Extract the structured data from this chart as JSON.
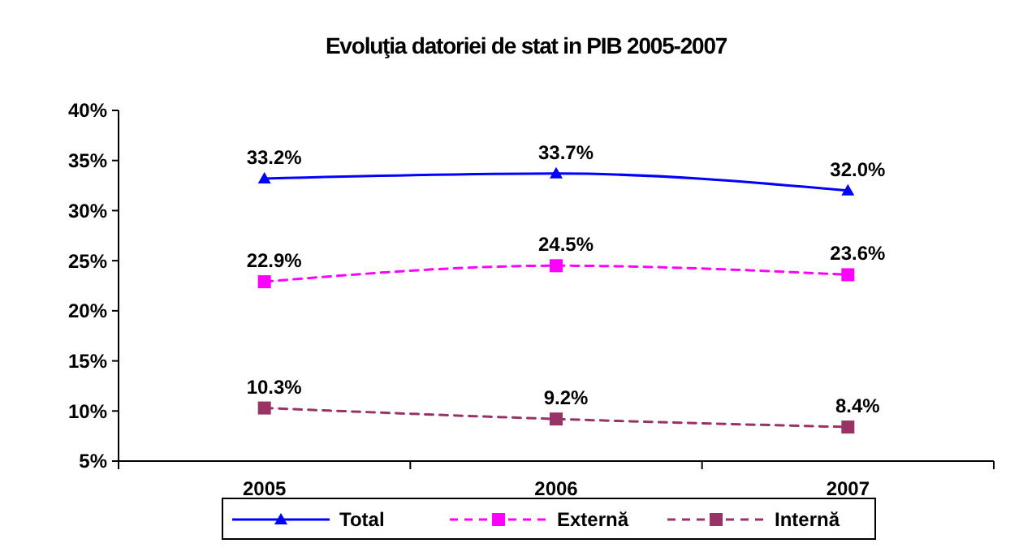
{
  "chart_data": {
    "type": "line",
    "title": "Evoluţia datoriei de stat in PIB 2005-2007",
    "categories": [
      "2005",
      "2006",
      "2007"
    ],
    "series": [
      {
        "name": "Total",
        "color": "#0000ff",
        "marker": "triangle",
        "line_style": "solid",
        "values": [
          33.2,
          33.7,
          32.0
        ],
        "value_labels": [
          "33.2%",
          "33.7%",
          "32.0%"
        ]
      },
      {
        "name": "Externă",
        "color": "#ff00ff",
        "marker": "square",
        "line_style": "dashed",
        "values": [
          22.9,
          24.5,
          23.6
        ],
        "value_labels": [
          "22.9%",
          "24.5%",
          "23.6%"
        ]
      },
      {
        "name": "Internă",
        "color": "#993366",
        "marker": "square",
        "line_style": "dashed",
        "values": [
          10.3,
          9.2,
          8.4
        ],
        "value_labels": [
          "10.3%",
          "9.2%",
          "8.4%"
        ]
      }
    ],
    "ylim": [
      5,
      40
    ],
    "yticks": [
      {
        "value": 5,
        "label": "5%"
      },
      {
        "value": 10,
        "label": "10%"
      },
      {
        "value": 15,
        "label": "15%"
      },
      {
        "value": 20,
        "label": "20%"
      },
      {
        "value": 25,
        "label": "25%"
      },
      {
        "value": 30,
        "label": "30%"
      },
      {
        "value": 35,
        "label": "35%"
      },
      {
        "value": 40,
        "label": "40%"
      }
    ],
    "grid": false,
    "legend": "bottom"
  }
}
